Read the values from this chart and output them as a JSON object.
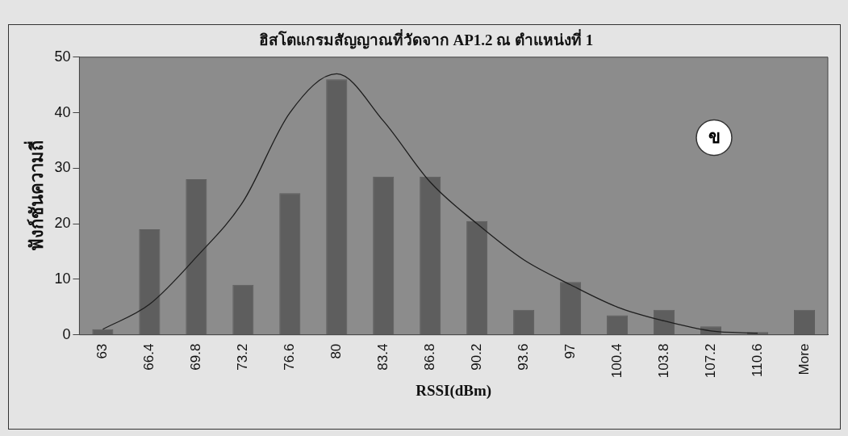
{
  "chart_data": {
    "type": "bar",
    "title": "ฮิสโตแกรมสัญญาณที่วัดจาก AP1.2 ณ ตำแหน่งที่ 1",
    "xlabel": "RSSI(dBm)",
    "ylabel": "ฟังก์ชันความถี่",
    "categories": [
      "63",
      "66.4",
      "69.8",
      "73.2",
      "76.6",
      "80",
      "83.4",
      "86.8",
      "90.2",
      "93.6",
      "97",
      "100.4",
      "103.8",
      "107.2",
      "110.6",
      "More"
    ],
    "series": [
      {
        "color": "#5e5e5e",
        "values": [
          1,
          19,
          28,
          9,
          25.5,
          46,
          28.5,
          28.5,
          20.5,
          4.5,
          9.5,
          3.5,
          4.5,
          1.5,
          0.5,
          4.5
        ]
      },
      {
        "type": "line",
        "color": "#1e1e1e",
        "values": [
          1,
          5.5,
          14,
          24,
          40,
          47,
          38.5,
          27.5,
          20,
          13.5,
          9,
          5,
          2.5,
          0.7,
          0.3,
          null
        ]
      }
    ],
    "ylim": [
      0,
      50
    ],
    "yticks": [
      0,
      10,
      20,
      30,
      40,
      50
    ],
    "grid": false,
    "legend": false,
    "marker": "none",
    "line_style": "solid",
    "annotations": [
      "ข"
    ]
  }
}
